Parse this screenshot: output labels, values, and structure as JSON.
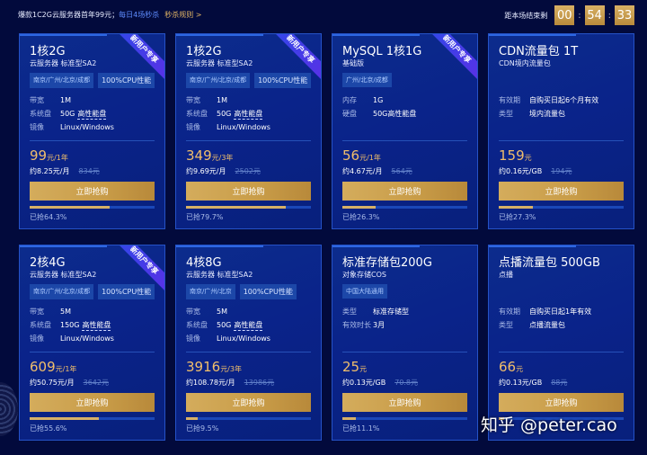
{
  "header": {
    "promo_text": "爆款1C2G云服务器首年99元；",
    "promo_highlight": "每日4场秒杀",
    "rules_link": "秒杀规则 >",
    "countdown_label": "距本场结束剩",
    "countdown": {
      "hours": "00",
      "minutes": "54",
      "seconds": "33"
    }
  },
  "buy_label": "立即抢购",
  "new_user_badge": "新用户专享",
  "cards": [
    {
      "title": "1核2G",
      "subtitle": "云服务器 标准型SA2",
      "tags": [
        "南京/广州/北京/成都",
        "100%CPU性能"
      ],
      "specs": [
        {
          "k": "带宽",
          "v": "1M"
        },
        {
          "k": "系统盘",
          "v": "50G",
          "u": "高性能盘"
        },
        {
          "k": "镜像",
          "v": "Linux/Windows"
        }
      ],
      "price": "99",
      "unit": "元/1年",
      "monthly": "约8.25元/月",
      "original": "834元",
      "sold": "已抢64.3%",
      "progress": 64.3,
      "new": true
    },
    {
      "title": "1核2G",
      "subtitle": "云服务器 标准型SA2",
      "tags": [
        "南京/广州/北京/成都",
        "100%CPU性能"
      ],
      "specs": [
        {
          "k": "带宽",
          "v": "1M"
        },
        {
          "k": "系统盘",
          "v": "50G",
          "u": "高性能盘"
        },
        {
          "k": "镜像",
          "v": "Linux/Windows"
        }
      ],
      "price": "349",
      "unit": "元/3年",
      "monthly": "约9.69元/月",
      "original": "2502元",
      "sold": "已抢79.7%",
      "progress": 79.7,
      "new": true
    },
    {
      "title": "MySQL 1核1G",
      "subtitle": "基础版",
      "tags": [
        "广州/北京/成都"
      ],
      "specs": [
        {
          "k": "内存",
          "v": "1G"
        },
        {
          "k": "硬盘",
          "v": "50G高性能盘"
        }
      ],
      "price": "56",
      "unit": "元/1年",
      "monthly": "约4.67元/月",
      "original": "564元",
      "sold": "已抢26.3%",
      "progress": 26.3,
      "new": true
    },
    {
      "title": "CDN流量包 1T",
      "subtitle": "CDN境内流量包",
      "tags": [],
      "specs": [
        {
          "k": "有效期",
          "v": "自购买日起6个月有效"
        },
        {
          "k": "类型",
          "v": "境内流量包"
        }
      ],
      "price": "159",
      "unit": "元",
      "monthly": "约0.16元/GB",
      "original": "194元",
      "sold": "已抢27.3%",
      "progress": 27.3,
      "new": false
    },
    {
      "title": "2核4G",
      "subtitle": "云服务器 标准型SA2",
      "tags": [
        "南京/广州/北京/成都",
        "100%CPU性能"
      ],
      "specs": [
        {
          "k": "带宽",
          "v": "5M"
        },
        {
          "k": "系统盘",
          "v": "150G",
          "u": "高性能盘"
        },
        {
          "k": "镜像",
          "v": "Linux/Windows"
        }
      ],
      "price": "609",
      "unit": "元/1年",
      "monthly": "约50.75元/月",
      "original": "3642元",
      "sold": "已抢55.6%",
      "progress": 55.6,
      "new": true
    },
    {
      "title": "4核8G",
      "subtitle": "云服务器 标准型SA2",
      "tags": [
        "南京/广州/北京",
        "100%CPU性能"
      ],
      "specs": [
        {
          "k": "带宽",
          "v": "5M"
        },
        {
          "k": "系统盘",
          "v": "50G",
          "u": "高性能盘"
        },
        {
          "k": "镜像",
          "v": "Linux/Windows"
        }
      ],
      "price": "3916",
      "unit": "元/3年",
      "monthly": "约108.78元/月",
      "original": "13986元",
      "sold": "已抢9.5%",
      "progress": 9.5,
      "new": false
    },
    {
      "title": "标准存储包200G",
      "subtitle": "对象存储COS",
      "tags": [
        "中国大陆通用"
      ],
      "specs": [
        {
          "k": "类型",
          "v": "标准存储型"
        },
        {
          "k": "有效时长",
          "v": "3月"
        }
      ],
      "price": "25",
      "unit": "元",
      "monthly": "约0.13元/GB",
      "original": "70.8元",
      "sold": "已抢11.1%",
      "progress": 11.1,
      "new": false
    },
    {
      "title": "点播流量包 500GB",
      "subtitle": "点播",
      "tags": [],
      "specs": [
        {
          "k": "有效期",
          "v": "自购买日起1年有效"
        },
        {
          "k": "类型",
          "v": "点播流量包"
        }
      ],
      "price": "66",
      "unit": "元",
      "monthly": "约0.13元/GB",
      "original": "88元",
      "new": false
    }
  ],
  "watermark": "知乎 @peter.cao",
  "colors": {
    "background": "#020a3c",
    "card": "#0a238a",
    "gold": "#d4ac5c",
    "price": "#f1be6b"
  }
}
